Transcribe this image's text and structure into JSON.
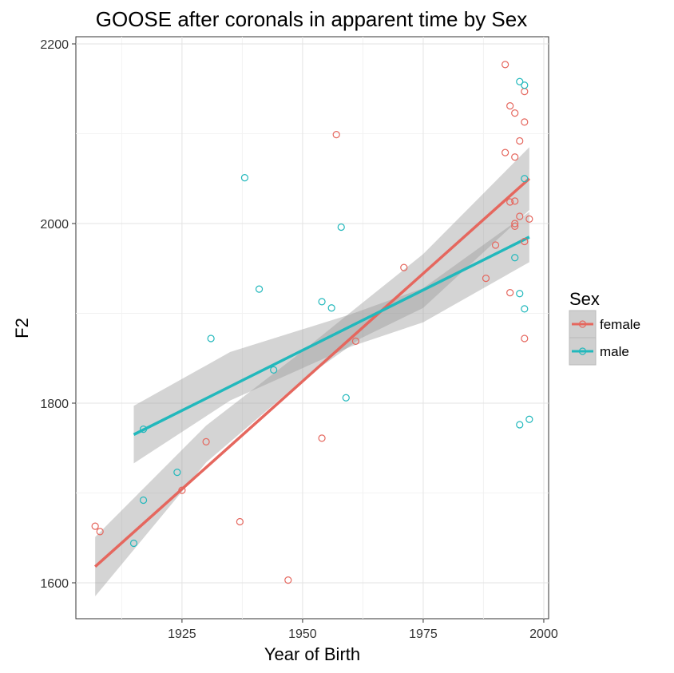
{
  "chart_data": {
    "type": "scatter",
    "title": "GOOSE after coronals in apparent time by Sex",
    "xlabel": "Year of Birth",
    "ylabel": "F2",
    "xlim": [
      1903,
      2001
    ],
    "ylim": [
      1560,
      2208
    ],
    "xticks": [
      1925,
      1950,
      1975,
      2000
    ],
    "yticks": [
      1600,
      1800,
      2000,
      2200
    ],
    "grid": true,
    "legend": {
      "title": "Sex",
      "position": "right"
    },
    "series": [
      {
        "name": "female",
        "color": "#E5675E",
        "points": [
          [
            1907,
            1663
          ],
          [
            1908,
            1657
          ],
          [
            1925,
            1703
          ],
          [
            1930,
            1757
          ],
          [
            1937,
            1668
          ],
          [
            1947,
            1603
          ],
          [
            1954,
            1761
          ],
          [
            1957,
            2099
          ],
          [
            1961,
            1869
          ],
          [
            1971,
            1951
          ],
          [
            1988,
            1939
          ],
          [
            1990,
            1976
          ],
          [
            1992,
            2177
          ],
          [
            1992,
            2079
          ],
          [
            1993,
            2131
          ],
          [
            1993,
            2024
          ],
          [
            1993,
            1923
          ],
          [
            1994,
            2123
          ],
          [
            1994,
            2074
          ],
          [
            1994,
            2025
          ],
          [
            1994,
            2000
          ],
          [
            1994,
            1997
          ],
          [
            1995,
            2092
          ],
          [
            1995,
            2008
          ],
          [
            1996,
            2147
          ],
          [
            1996,
            2113
          ],
          [
            1996,
            1980
          ],
          [
            1996,
            1872
          ],
          [
            1997,
            2005
          ]
        ],
        "fit": {
          "x": [
            1907,
            1997
          ],
          "y": [
            1618,
            2050
          ]
        },
        "band": {
          "x": [
            1907,
            1930,
            1950,
            1962,
            1975,
            1997
          ],
          "lower": [
            1585,
            1734,
            1826,
            1872,
            1906,
            2015
          ],
          "upper": [
            1651,
            1775,
            1858,
            1910,
            1966,
            2085
          ]
        }
      },
      {
        "name": "male",
        "color": "#22B8BC",
        "points": [
          [
            1915,
            1644
          ],
          [
            1917,
            1771
          ],
          [
            1917,
            1692
          ],
          [
            1924,
            1723
          ],
          [
            1931,
            1872
          ],
          [
            1938,
            2051
          ],
          [
            1941,
            1927
          ],
          [
            1944,
            1837
          ],
          [
            1954,
            1913
          ],
          [
            1956,
            1906
          ],
          [
            1958,
            1996
          ],
          [
            1959,
            1806
          ],
          [
            1994,
            1962
          ],
          [
            1995,
            2158
          ],
          [
            1995,
            1922
          ],
          [
            1995,
            1776
          ],
          [
            1996,
            2154
          ],
          [
            1996,
            2050
          ],
          [
            1996,
            1905
          ],
          [
            1997,
            1782
          ]
        ],
        "fit": {
          "x": [
            1915,
            1997
          ],
          "y": [
            1765,
            1985
          ]
        },
        "band": {
          "x": [
            1915,
            1935,
            1960,
            1975,
            1997
          ],
          "lower": [
            1733,
            1803,
            1863,
            1890,
            1957
          ],
          "upper": [
            1797,
            1857,
            1899,
            1928,
            2013
          ]
        }
      }
    ]
  }
}
